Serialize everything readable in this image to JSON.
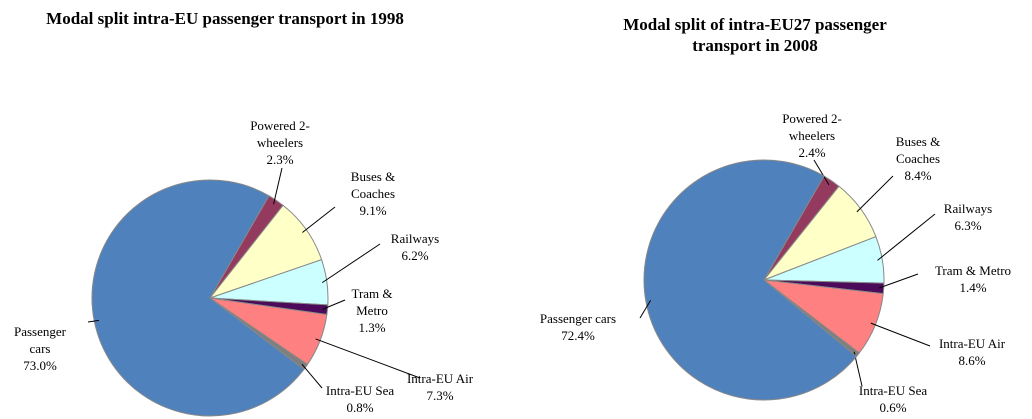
{
  "chart_data": [
    {
      "type": "pie",
      "title": "Modal split intra-EU passenger transport in 1998",
      "categories": [
        "Powered 2-wheelers",
        "Buses & Coaches",
        "Railways",
        "Tram & Metro",
        "Intra-EU Air",
        "Intra-EU Sea",
        "Passenger cars"
      ],
      "values": [
        2.3,
        9.1,
        6.2,
        1.3,
        7.3,
        0.8,
        73.0
      ],
      "value_labels": [
        "2.3%",
        "9.1%",
        "6.2%",
        "1.3%",
        "7.3%",
        "0.8%",
        "73.0%"
      ],
      "colors": [
        "#953a5f",
        "#ffffc8",
        "#ccffff",
        "#4b0a5a",
        "#ff8080",
        "#7f7f7f",
        "#4f81bd"
      ]
    },
    {
      "type": "pie",
      "title": "Modal split of intra-EU27 passenger transport in 2008",
      "categories": [
        "Powered 2-wheelers",
        "Buses & Coaches",
        "Railways",
        "Tram & Metro",
        "Intra-EU Air",
        "Intra-EU Sea",
        "Passenger cars"
      ],
      "values": [
        2.4,
        8.4,
        6.3,
        1.4,
        8.6,
        0.6,
        72.4
      ],
      "value_labels": [
        "2.4%",
        "8.4%",
        "6.3%",
        "1.4%",
        "8.6%",
        "0.6%",
        "72.4%"
      ],
      "colors": [
        "#953a5f",
        "#ffffc8",
        "#ccffff",
        "#4b0a5a",
        "#ff8080",
        "#7f7f7f",
        "#4f81bd"
      ]
    }
  ]
}
